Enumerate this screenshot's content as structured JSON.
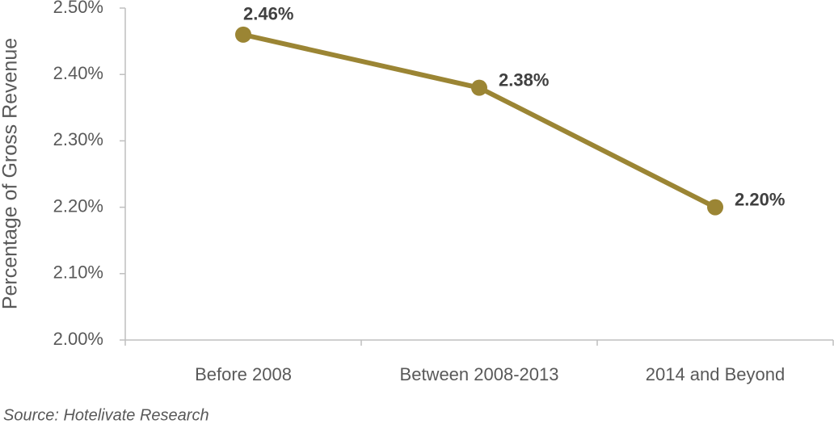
{
  "chart_data": {
    "type": "line",
    "y_label": "Percentage of Gross Revenue",
    "source": "Source: Hotelivate Research",
    "categories": [
      "Before 2008",
      "Between 2008-2013",
      "2014 and Beyond"
    ],
    "series": [
      {
        "name": "Percentage of Gross Revenue",
        "color": "#9b8534",
        "values": [
          2.46,
          2.38,
          2.2
        ],
        "value_labels": [
          "2.46%",
          "2.38%",
          "2.20%"
        ]
      }
    ],
    "ylim": [
      2.0,
      2.5
    ],
    "yticks": [
      {
        "value": 2.0,
        "label": "2.00%"
      },
      {
        "value": 2.1,
        "label": "2.10%"
      },
      {
        "value": 2.2,
        "label": "2.20%"
      },
      {
        "value": 2.3,
        "label": "2.30%"
      },
      {
        "value": 2.4,
        "label": "2.40%"
      },
      {
        "value": 2.5,
        "label": "2.50%"
      }
    ],
    "grid": false
  }
}
